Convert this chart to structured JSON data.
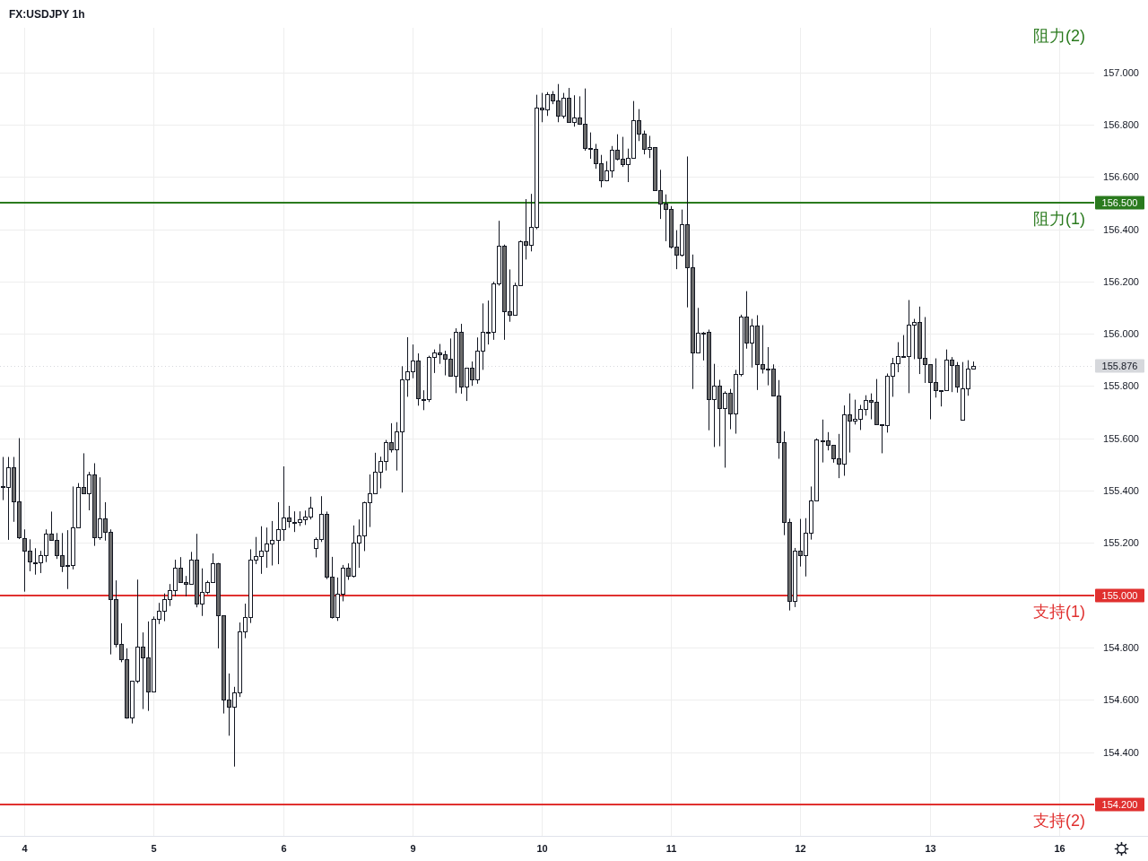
{
  "chart_data": {
    "type": "candlestick",
    "title": "FX:USDJPY 1h",
    "categories": [
      null,
      null,
      null,
      null,
      "4",
      null,
      null,
      null,
      null,
      null,
      null,
      null,
      null,
      null,
      null,
      null,
      null,
      null,
      null,
      null,
      null,
      null,
      null,
      null,
      null,
      null,
      null,
      null,
      "5",
      null,
      null,
      null,
      null,
      null,
      null,
      null,
      null,
      null,
      null,
      null,
      null,
      null,
      null,
      null,
      null,
      null,
      null,
      null,
      null,
      null,
      null,
      null,
      "6",
      null,
      null,
      null,
      null,
      null,
      null,
      null,
      null,
      null,
      null,
      null,
      null,
      null,
      null,
      null,
      null,
      null,
      null,
      null,
      null,
      null,
      null,
      null,
      "9",
      null,
      null,
      null,
      null,
      null,
      null,
      null,
      null,
      null,
      null,
      null,
      null,
      null,
      null,
      null,
      null,
      null,
      null,
      null,
      null,
      null,
      null,
      null,
      "10",
      null,
      null,
      null,
      null,
      null,
      null,
      null,
      null,
      null,
      null,
      null,
      null,
      null,
      null,
      null,
      null,
      null,
      null,
      null,
      null,
      null,
      null,
      null,
      "11",
      null,
      null,
      null,
      null,
      null,
      null,
      null,
      null,
      null,
      null,
      null,
      null,
      null,
      null,
      null,
      null,
      null,
      null,
      null,
      null,
      null,
      null,
      null,
      "12",
      null,
      null,
      null,
      null,
      null,
      null,
      null,
      null,
      null,
      null,
      null,
      null,
      null,
      null,
      null,
      null,
      null,
      null,
      null,
      null,
      null,
      null,
      null,
      "13",
      null,
      null,
      null,
      null,
      null,
      null,
      null,
      null,
      null,
      null,
      null,
      null,
      null,
      null,
      null,
      null,
      null,
      null,
      null,
      null,
      null,
      null,
      null,
      "16",
      null,
      null,
      null,
      null,
      null,
      null
    ],
    "ohlc": [
      [
        155.417,
        155.529,
        155.364,
        155.417
      ],
      [
        155.415,
        155.529,
        155.212,
        155.489
      ],
      [
        155.489,
        155.529,
        155.281,
        155.358
      ],
      [
        155.358,
        155.601,
        155.215,
        155.221
      ],
      [
        155.22,
        155.252,
        155.014,
        155.169
      ],
      [
        155.169,
        155.214,
        155.092,
        155.128
      ],
      [
        155.127,
        155.18,
        155.079,
        155.127
      ],
      [
        155.126,
        155.17,
        155.085,
        155.152
      ],
      [
        155.152,
        155.252,
        155.127,
        155.237
      ],
      [
        155.237,
        155.32,
        155.21,
        155.212
      ],
      [
        155.213,
        155.238,
        155.139,
        155.152
      ],
      [
        155.152,
        155.238,
        155.089,
        155.114
      ],
      [
        155.115,
        155.249,
        155.024,
        155.115
      ],
      [
        155.116,
        155.416,
        155.099,
        155.261
      ],
      [
        155.261,
        155.429,
        155.258,
        155.415
      ],
      [
        155.415,
        155.543,
        155.389,
        155.391
      ],
      [
        155.391,
        155.472,
        155.325,
        155.463
      ],
      [
        155.463,
        155.505,
        155.189,
        155.223
      ],
      [
        155.223,
        155.451,
        155.212,
        155.295
      ],
      [
        155.295,
        155.356,
        155.209,
        155.244
      ],
      [
        155.244,
        155.252,
        154.774,
        154.987
      ],
      [
        154.987,
        155.057,
        154.801,
        154.813
      ],
      [
        154.813,
        154.893,
        154.744,
        154.755
      ],
      [
        154.755,
        154.797,
        154.528,
        154.531
      ],
      [
        154.531,
        154.672,
        154.51,
        154.672
      ],
      [
        154.672,
        155.06,
        154.664,
        154.803
      ],
      [
        154.803,
        154.858,
        154.565,
        154.762
      ],
      [
        154.762,
        154.9,
        154.558,
        154.631
      ],
      [
        154.631,
        154.919,
        154.631,
        154.91
      ],
      [
        154.91,
        154.971,
        154.89,
        154.94
      ],
      [
        154.94,
        155.007,
        154.901,
        154.987
      ],
      [
        154.987,
        155.043,
        154.959,
        155.018
      ],
      [
        155.018,
        155.136,
        154.996,
        155.107
      ],
      [
        155.107,
        155.146,
        155.052,
        155.052
      ],
      [
        155.052,
        155.074,
        154.996,
        155.042
      ],
      [
        155.042,
        155.166,
        155.042,
        155.135
      ],
      [
        155.135,
        155.235,
        154.954,
        154.967
      ],
      [
        154.967,
        155.103,
        154.921,
        155.014
      ],
      [
        155.014,
        155.056,
        155.004,
        155.052
      ],
      [
        155.052,
        155.16,
        155.047,
        155.124
      ],
      [
        155.124,
        155.124,
        154.797,
        154.922
      ],
      [
        154.922,
        154.922,
        154.548,
        154.601
      ],
      [
        154.601,
        154.701,
        154.463,
        154.573
      ],
      [
        154.573,
        154.65,
        154.345,
        154.628
      ],
      [
        154.628,
        154.896,
        154.611,
        154.861
      ],
      [
        154.861,
        154.968,
        154.836,
        154.916
      ],
      [
        154.916,
        155.176,
        154.894,
        155.138
      ],
      [
        155.138,
        155.223,
        155.119,
        155.149
      ],
      [
        155.149,
        155.264,
        155.082,
        155.17
      ],
      [
        155.17,
        155.259,
        155.105,
        155.197
      ],
      [
        155.197,
        155.284,
        155.114,
        155.211
      ],
      [
        155.211,
        155.356,
        155.119,
        155.252
      ],
      [
        155.252,
        155.493,
        155.208,
        155.297
      ],
      [
        155.297,
        155.342,
        155.258,
        155.283
      ],
      [
        155.282,
        155.321,
        155.242,
        155.282
      ],
      [
        155.281,
        155.321,
        155.265,
        155.29
      ],
      [
        155.29,
        155.324,
        155.269,
        155.3
      ],
      [
        155.3,
        155.377,
        155.29,
        155.334
      ],
      [
        155.18,
        155.221,
        155.145,
        155.215
      ],
      [
        155.215,
        155.379,
        155.204,
        155.311
      ],
      [
        155.311,
        155.32,
        155.062,
        155.071
      ],
      [
        155.071,
        155.147,
        154.911,
        154.917
      ],
      [
        154.917,
        155.068,
        154.902,
        155.006
      ],
      [
        155.006,
        155.116,
        154.977,
        155.105
      ],
      [
        155.105,
        155.122,
        155.059,
        155.074
      ],
      [
        155.074,
        155.267,
        155.068,
        155.201
      ],
      [
        155.201,
        155.29,
        155.105,
        155.228
      ],
      [
        155.228,
        155.358,
        155.169,
        155.355
      ],
      [
        155.355,
        155.462,
        155.261,
        155.389
      ],
      [
        155.389,
        155.545,
        155.389,
        155.471
      ],
      [
        155.471,
        155.53,
        155.409,
        155.513
      ],
      [
        155.513,
        155.594,
        155.477,
        155.585
      ],
      [
        155.585,
        155.658,
        155.546,
        155.557
      ],
      [
        155.557,
        155.662,
        155.477,
        155.626
      ],
      [
        155.626,
        155.876,
        155.393,
        155.824
      ],
      [
        155.824,
        155.987,
        155.759,
        155.855
      ],
      [
        155.855,
        155.959,
        155.83,
        155.896
      ],
      [
        155.896,
        155.925,
        155.725,
        155.752
      ],
      [
        155.751,
        155.784,
        155.708,
        155.751
      ],
      [
        155.749,
        155.916,
        155.739,
        155.91
      ],
      [
        155.91,
        155.94,
        155.85,
        155.93
      ],
      [
        155.93,
        155.961,
        155.885,
        155.92
      ],
      [
        155.92,
        155.935,
        155.841,
        155.906
      ],
      [
        155.906,
        155.982,
        155.836,
        155.841
      ],
      [
        155.841,
        156.021,
        155.773,
        156.009
      ],
      [
        156.009,
        156.038,
        155.771,
        155.797
      ],
      [
        155.797,
        155.869,
        155.743,
        155.869
      ],
      [
        155.869,
        155.894,
        155.801,
        155.824
      ],
      [
        155.824,
        155.986,
        155.809,
        155.934
      ],
      [
        155.934,
        156.116,
        155.862,
        156.009
      ],
      [
        156.008,
        156.127,
        155.959,
        156.008
      ],
      [
        156.006,
        156.199,
        155.977,
        156.191
      ],
      [
        156.191,
        156.432,
        156.184,
        156.335
      ],
      [
        156.335,
        156.341,
        155.977,
        156.085
      ],
      [
        156.085,
        156.246,
        156.046,
        156.074
      ],
      [
        156.073,
        156.195,
        156.071,
        156.187
      ],
      [
        156.187,
        156.357,
        156.187,
        156.355
      ],
      [
        156.355,
        156.515,
        156.284,
        156.341
      ],
      [
        156.341,
        156.535,
        156.315,
        156.41
      ],
      [
        156.41,
        156.914,
        156.4,
        156.865
      ],
      [
        156.865,
        156.921,
        156.809,
        156.858
      ],
      [
        156.858,
        156.924,
        156.833,
        156.916
      ],
      [
        156.916,
        156.928,
        156.878,
        156.891
      ],
      [
        156.891,
        156.955,
        156.809,
        156.834
      ],
      [
        156.834,
        156.921,
        156.823,
        156.903
      ],
      [
        156.903,
        156.94,
        156.81,
        156.81
      ],
      [
        156.81,
        156.912,
        156.792,
        156.827
      ],
      [
        156.827,
        156.908,
        156.799,
        156.803
      ],
      [
        156.803,
        156.938,
        156.7,
        156.711
      ],
      [
        156.709,
        156.77,
        156.669,
        156.709
      ],
      [
        156.708,
        156.726,
        156.631,
        156.653
      ],
      [
        156.653,
        156.684,
        156.56,
        156.588
      ],
      [
        156.588,
        156.66,
        156.583,
        156.625
      ],
      [
        156.625,
        156.718,
        156.597,
        156.704
      ],
      [
        156.704,
        156.763,
        156.663,
        156.67
      ],
      [
        156.67,
        156.753,
        156.638,
        156.649
      ],
      [
        156.649,
        156.708,
        156.58,
        156.673
      ],
      [
        156.673,
        156.89,
        156.673,
        156.817
      ],
      [
        156.817,
        156.859,
        156.737,
        156.766
      ],
      [
        156.766,
        156.777,
        156.686,
        156.708
      ],
      [
        156.708,
        156.757,
        156.672,
        156.714
      ],
      [
        156.714,
        156.714,
        156.55,
        156.55
      ],
      [
        156.55,
        156.627,
        156.439,
        156.499
      ],
      [
        156.499,
        156.533,
        156.354,
        156.478
      ],
      [
        156.478,
        156.488,
        156.326,
        156.334
      ],
      [
        156.334,
        156.396,
        156.247,
        156.303
      ],
      [
        156.303,
        156.475,
        156.295,
        156.42
      ],
      [
        156.42,
        156.678,
        156.101,
        156.255
      ],
      [
        156.255,
        156.303,
        155.789,
        155.93
      ],
      [
        155.93,
        156.099,
        155.93,
        156.003
      ],
      [
        156.004,
        156.007,
        155.898,
        156.004
      ],
      [
        156.008,
        156.016,
        155.631,
        155.75
      ],
      [
        155.75,
        155.885,
        155.567,
        155.802
      ],
      [
        155.802,
        155.824,
        155.57,
        155.716
      ],
      [
        155.716,
        155.78,
        155.488,
        155.775
      ],
      [
        155.774,
        155.789,
        155.635,
        155.695
      ],
      [
        155.695,
        155.862,
        155.618,
        155.846
      ],
      [
        155.846,
        156.073,
        155.837,
        156.066
      ],
      [
        156.066,
        156.163,
        155.943,
        155.966
      ],
      [
        155.966,
        156.057,
        155.871,
        156.032
      ],
      [
        156.032,
        156.071,
        155.785,
        155.883
      ],
      [
        155.883,
        156.033,
        155.848,
        155.867
      ],
      [
        155.867,
        155.949,
        155.803,
        155.867
      ],
      [
        155.867,
        155.883,
        155.764,
        155.764
      ],
      [
        155.764,
        155.823,
        155.522,
        155.585
      ],
      [
        155.585,
        155.627,
        155.23,
        155.282
      ],
      [
        155.282,
        155.293,
        154.942,
        154.977
      ],
      [
        154.977,
        155.181,
        154.955,
        155.169
      ],
      [
        155.169,
        155.292,
        155.11,
        155.152
      ],
      [
        155.152,
        155.295,
        155.072,
        155.238
      ],
      [
        155.238,
        155.416,
        155.213,
        155.362
      ],
      [
        155.362,
        155.6,
        155.362,
        155.597
      ],
      [
        155.594,
        155.672,
        155.508,
        155.594
      ],
      [
        155.593,
        155.624,
        155.554,
        155.575
      ],
      [
        155.575,
        155.575,
        155.507,
        155.523
      ],
      [
        155.523,
        155.617,
        155.448,
        155.503
      ],
      [
        155.503,
        155.726,
        155.457,
        155.692
      ],
      [
        155.692,
        155.772,
        155.546,
        155.668
      ],
      [
        155.668,
        155.748,
        155.653,
        155.674
      ],
      [
        155.674,
        155.728,
        155.632,
        155.712
      ],
      [
        155.712,
        155.765,
        155.687,
        155.748
      ],
      [
        155.748,
        155.772,
        155.673,
        155.74
      ],
      [
        155.74,
        155.827,
        155.654,
        155.654
      ],
      [
        155.653,
        155.654,
        155.543,
        155.653
      ],
      [
        155.65,
        155.848,
        155.622,
        155.84
      ],
      [
        155.84,
        155.908,
        155.759,
        155.887
      ],
      [
        155.887,
        155.968,
        155.853,
        155.915
      ],
      [
        155.914,
        155.995,
        155.913,
        155.915
      ],
      [
        155.915,
        156.129,
        155.773,
        156.035
      ],
      [
        156.035,
        156.057,
        155.903,
        156.045
      ],
      [
        156.045,
        156.104,
        155.846,
        155.908
      ],
      [
        155.908,
        156.064,
        155.812,
        155.883
      ],
      [
        155.883,
        155.883,
        155.673,
        155.815
      ],
      [
        155.815,
        155.906,
        155.756,
        155.784
      ],
      [
        155.784,
        155.784,
        155.722,
        155.784
      ],
      [
        155.784,
        155.94,
        155.784,
        155.901
      ],
      [
        155.901,
        155.911,
        155.777,
        155.881
      ],
      [
        155.881,
        155.892,
        155.775,
        155.798
      ],
      [
        155.671,
        155.892,
        155.671,
        155.791
      ],
      [
        155.791,
        155.899,
        155.763,
        155.867
      ],
      [
        155.867,
        155.894,
        155.867,
        155.876
      ],
      null,
      null,
      null,
      null,
      null,
      null,
      null,
      null,
      null,
      null,
      null,
      null,
      null,
      null,
      null,
      null,
      null,
      null,
      null,
      null,
      null,
      null
    ],
    "ylim": [
      154.08,
      157.17
    ],
    "yticks": [
      {
        "value": 154.4,
        "label": "154.400"
      },
      {
        "value": 154.6,
        "label": "154.600"
      },
      {
        "value": 154.8,
        "label": "154.800"
      },
      {
        "value": 155.2,
        "label": "155.200"
      },
      {
        "value": 155.4,
        "label": "155.400"
      },
      {
        "value": 155.6,
        "label": "155.600"
      },
      {
        "value": 155.8,
        "label": "155.800"
      },
      {
        "value": 156.0,
        "label": "156.000"
      },
      {
        "value": 156.2,
        "label": "156.200"
      },
      {
        "value": 156.4,
        "label": "156.400"
      },
      {
        "value": 156.6,
        "label": "156.600"
      },
      {
        "value": 156.8,
        "label": "156.800"
      },
      {
        "value": 157.0,
        "label": "157.000"
      }
    ],
    "grid": true,
    "ref_lines": [
      {
        "axis": "y",
        "value": 156.5,
        "label": "阻力(1)",
        "color": "#2a7a1e"
      },
      {
        "axis": "y",
        "value": 155.0,
        "label": "支持(1)",
        "color": "#e0302f"
      },
      {
        "axis": "y",
        "value": 154.2,
        "label": "支持(2)",
        "color": "#e0302f"
      },
      {
        "axis": "y",
        "value": 155.876,
        "color": "#d6d8dc",
        "line_style": "dotted"
      }
    ],
    "annotations": [
      "阻力(2)",
      "156.500",
      "155.000",
      "154.200",
      "155.876"
    ]
  }
}
